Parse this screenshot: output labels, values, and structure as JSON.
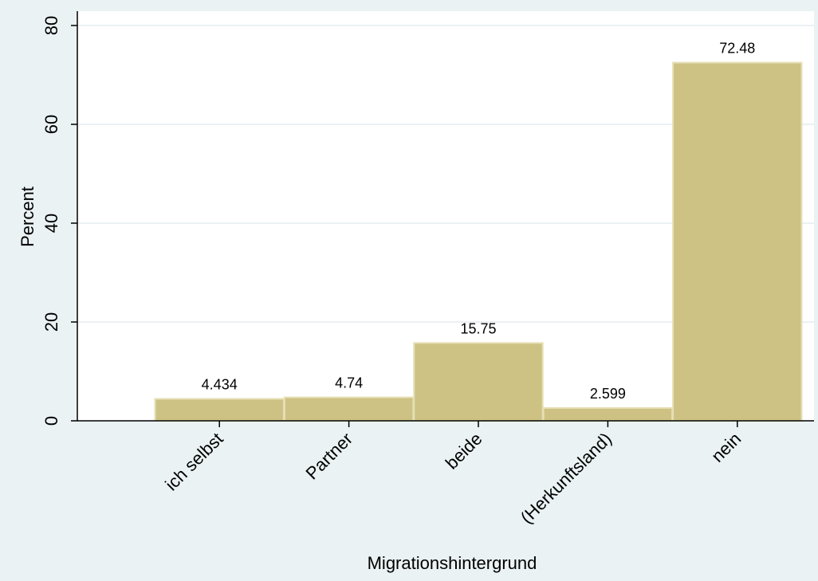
{
  "chart_data": {
    "type": "bar",
    "categories": [
      "ich selbst",
      "Partner",
      "beide",
      "(Herkunftsland)",
      "nein"
    ],
    "values": [
      4.434,
      4.74,
      15.75,
      2.599,
      72.48
    ],
    "value_labels": [
      "4.434",
      "4.74",
      "15.75",
      "2.599",
      "72.48"
    ],
    "xlabel": "Migrationshintergrund",
    "ylabel": "Percent",
    "ylim": [
      0,
      80
    ],
    "yticks": [
      0,
      20,
      40,
      60,
      80
    ],
    "grid": true
  },
  "colors": {
    "background": "#eaf2f3",
    "plot_background": "#ffffff",
    "bar_fill": "#cdc283",
    "bar_stroke": "#e6dfb5",
    "gridline": "#eaf2f3",
    "axis": "#000000"
  }
}
